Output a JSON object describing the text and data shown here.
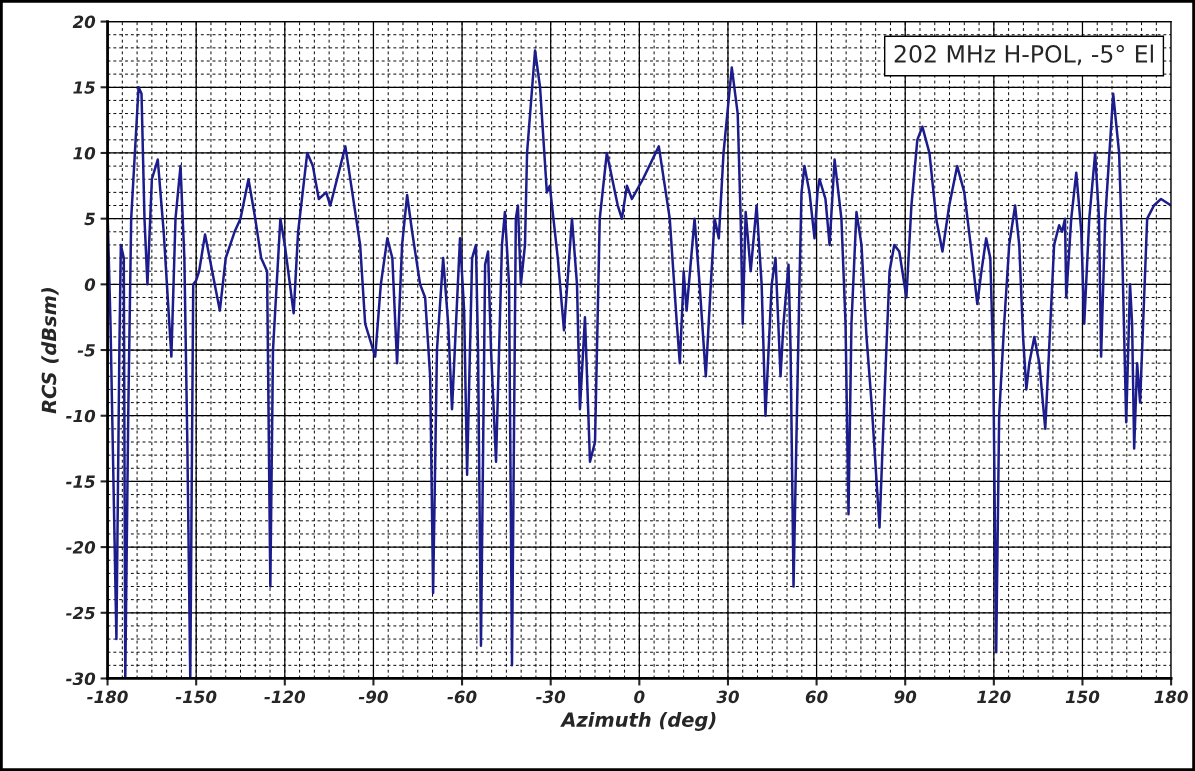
{
  "chart_data": {
    "type": "line",
    "xlabel": "Azimuth (deg)",
    "ylabel": "RCS (dBsm)",
    "annotations": [
      "202 MHz H-POL, -5° El"
    ],
    "xlim": [
      -180,
      180
    ],
    "xticks": [
      -180,
      -150,
      -120,
      -90,
      -60,
      -30,
      0,
      30,
      60,
      90,
      120,
      150,
      180
    ],
    "ylim": [
      -30,
      20
    ],
    "yticks": [
      -30,
      -25,
      -20,
      -15,
      -10,
      -5,
      0,
      5,
      10,
      15,
      20
    ],
    "grid": true,
    "marker": "none",
    "line_style": "solid",
    "series": [
      {
        "color": "#1c1c8c",
        "x": [
          -180,
          -179,
          -177,
          -176,
          -175.5,
          -174.5,
          -174,
          -173,
          -172,
          -169.5,
          -168.5,
          -167.5,
          -166.5,
          -165,
          -163,
          -161,
          -158.4,
          -157,
          -155.3,
          -154,
          -153,
          -152,
          -151,
          -150,
          -149,
          -147,
          -145,
          -142,
          -140,
          -137,
          -135,
          -132.3,
          -130,
          -128,
          -126,
          -124.9,
          -124,
          -121.5,
          -120,
          -117,
          -115.5,
          -112.4,
          -110.5,
          -108.5,
          -106,
          -104.6,
          -99.5,
          -94.5,
          -92.8,
          -89.4,
          -87.5,
          -85.3,
          -83.6,
          -82,
          -80.3,
          -78.6,
          -76.9,
          -74.2,
          -72.5,
          -70.8,
          -69.8,
          -68.5,
          -66.4,
          -64.7,
          -63.4,
          -60.7,
          -59.3,
          -58.3,
          -56.6,
          -55.3,
          -54.6,
          -53.6,
          -52.2,
          -51.2,
          -50.2,
          -48.5,
          -46.5,
          -45.5,
          -44.1,
          -43.1,
          -41.8,
          -41.1,
          -40.1,
          -38.7,
          -38,
          -35.3,
          -33.6,
          -31.3,
          -30.3,
          -27.6,
          -25.5,
          -22.8,
          -21.1,
          -20.1,
          -18.4,
          -16.7,
          -15,
          -13.4,
          -11,
          -7.3,
          -5.9,
          -4.2,
          -2.5,
          1.2,
          6.6,
          10.3,
          12.7,
          13.7,
          14.7,
          15,
          16,
          18.7,
          20.4,
          22.5,
          24.2,
          25.5,
          26.9,
          28.5,
          31.3,
          33.3,
          34.3,
          35,
          36,
          37.7,
          39.7,
          41.4,
          42.7,
          44.8,
          46.1,
          47.8,
          48.8,
          50.5,
          51.2,
          52.2,
          54.2,
          54.9,
          55.9,
          57.6,
          59.3,
          60.3,
          61,
          63,
          64.4,
          66.1,
          68.4,
          69.8,
          70.8,
          71.8,
          73.5,
          75.2,
          76.9,
          78.6,
          81.3,
          83.6,
          84.7,
          86.3,
          88,
          90.4,
          92.1,
          94.1,
          95.8,
          98.2,
          100.5,
          102.6,
          104.9,
          107.6,
          110,
          112.7,
          114.4,
          115.8,
          117.4,
          118.8,
          119.8,
          120.8,
          121.8,
          123.5,
          125.2,
          127.2,
          128.6,
          129.9,
          131,
          132,
          133.7,
          135.4,
          137.4,
          138.7,
          140.4,
          142.1,
          143.1,
          144.1,
          144.5,
          146.2,
          147.9,
          149.6,
          150.6,
          152.3,
          154.3,
          155.6,
          156.3,
          157.7,
          160.4,
          162.4,
          163.4,
          164.8,
          166.1,
          166.8,
          167.5,
          168.5,
          169.5,
          171.9,
          174.2,
          176.6,
          180
        ],
        "values": [
          5.5,
          -3,
          -27,
          -5,
          3,
          2,
          -30,
          -10,
          5,
          15,
          14.5,
          5,
          0,
          8,
          9.5,
          4,
          -5.5,
          5,
          9,
          2,
          -12,
          -30,
          0,
          0.3,
          1,
          3.8,
          1.5,
          -2,
          2,
          4,
          5,
          8,
          5,
          2,
          1,
          -23,
          -5,
          5,
          3,
          -2.2,
          4,
          10,
          9,
          6.5,
          7,
          6,
          10.5,
          3,
          -3,
          -5.5,
          0,
          3.5,
          2,
          -6,
          3,
          6.8,
          4,
          0,
          -1,
          -7,
          -23.5,
          -5,
          2,
          -3,
          -9.5,
          3.5,
          -2,
          -14.5,
          2,
          3,
          -5,
          -27.5,
          1.5,
          2.5,
          -5,
          -13.5,
          3,
          5.5,
          0,
          -29,
          5,
          6,
          0,
          3,
          10,
          17.8,
          15,
          7,
          7.5,
          2,
          -3.5,
          5,
          0,
          -9.5,
          -2.5,
          -13.5,
          -12,
          5,
          10,
          6,
          5,
          7.5,
          6.5,
          8,
          10.5,
          5,
          -3,
          -6,
          -1,
          1,
          -2,
          5,
          0,
          -7,
          0,
          5,
          3.5,
          10,
          16.5,
          13,
          5,
          -3,
          5.5,
          1,
          6,
          0,
          -10,
          0,
          2,
          -7,
          -3,
          1.5,
          -5,
          -23,
          0,
          7,
          9,
          7,
          3.5,
          7,
          8,
          6.5,
          3,
          9.5,
          5,
          -3,
          -17.5,
          -3,
          5.5,
          3,
          -4,
          -9,
          -18.5,
          -5,
          1,
          3,
          2.5,
          -1,
          6,
          11,
          12,
          10,
          5,
          2.5,
          6,
          9,
          7,
          2,
          -1.5,
          1,
          3.5,
          2,
          -6,
          -28,
          -10,
          -3,
          3,
          6,
          3,
          -4,
          -8,
          -6,
          -4,
          -6,
          -11,
          -5,
          3,
          4.5,
          4,
          5,
          -1,
          5,
          8.5,
          4,
          -3,
          5,
          10,
          5,
          -5.5,
          5,
          14.5,
          10,
          3,
          -10.5,
          0,
          -3,
          -12.5,
          -6,
          -9,
          5,
          6,
          6.5,
          6
        ]
      }
    ]
  }
}
